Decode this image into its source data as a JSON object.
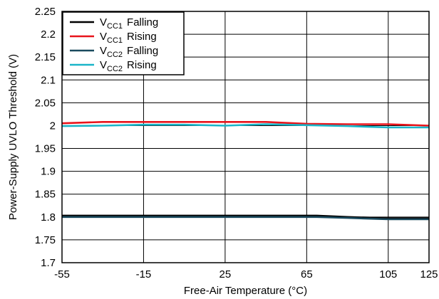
{
  "chart_data": {
    "type": "line",
    "xlabel": "Free-Air Temperature (°C)",
    "ylabel": "Power-Supply UVLO Threshold (V)",
    "xlim": [
      -55,
      125
    ],
    "ylim": [
      1.7,
      2.25
    ],
    "x_ticks": [
      -55,
      -15,
      25,
      65,
      105,
      125
    ],
    "x_tick_labels": [
      "-55",
      "-15",
      "25",
      "65",
      "105",
      "125"
    ],
    "y_ticks": [
      1.7,
      1.75,
      1.8,
      1.85,
      1.9,
      1.95,
      2.0,
      2.05,
      2.1,
      2.15,
      2.2,
      2.25
    ],
    "y_tick_labels": [
      "1.7",
      "1.75",
      "1.8",
      "1.85",
      "1.9",
      "1.95",
      "2",
      "2.05",
      "2.1",
      "2.15",
      "2.2",
      "2.25"
    ],
    "grid": true,
    "legend_position": "top-left",
    "series": [
      {
        "base": "V",
        "sub": "CC1",
        "suffix": "Falling",
        "color": "#000000",
        "x": [
          -55,
          -35,
          -15,
          5,
          25,
          45,
          65,
          70,
          85,
          105,
          125
        ],
        "y": [
          1.803,
          1.803,
          1.803,
          1.803,
          1.803,
          1.803,
          1.803,
          1.803,
          1.8,
          1.797,
          1.797
        ]
      },
      {
        "base": "V",
        "sub": "CC1",
        "suffix": "Rising",
        "color": "#e8141b",
        "x": [
          -55,
          -35,
          -15,
          5,
          25,
          45,
          65,
          85,
          105,
          125
        ],
        "y": [
          2.005,
          2.008,
          2.008,
          2.008,
          2.008,
          2.008,
          2.004,
          2.003,
          2.003,
          2.0
        ]
      },
      {
        "base": "V",
        "sub": "CC2",
        "suffix": "Falling",
        "color": "#1a4a5e",
        "x": [
          -55,
          -35,
          -15,
          5,
          25,
          45,
          65,
          70,
          85,
          105,
          125
        ],
        "y": [
          1.8,
          1.8,
          1.8,
          1.8,
          1.8,
          1.8,
          1.8,
          1.8,
          1.798,
          1.795,
          1.795
        ]
      },
      {
        "base": "V",
        "sub": "CC2",
        "suffix": "Rising",
        "color": "#1ab5c8",
        "x": [
          -55,
          -35,
          -15,
          5,
          25,
          45,
          65,
          85,
          105,
          125
        ],
        "y": [
          1.999,
          2.0,
          2.002,
          2.002,
          2.0,
          2.003,
          2.001,
          1.999,
          1.996,
          1.996
        ]
      }
    ]
  }
}
